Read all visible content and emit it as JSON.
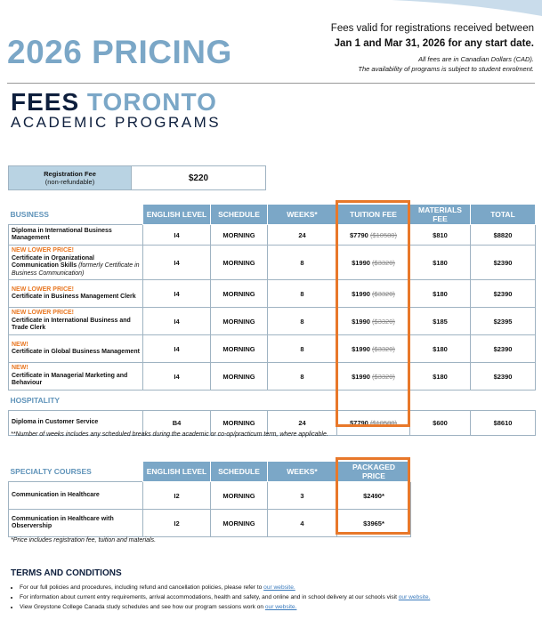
{
  "header": {
    "title": "2026 PRICING",
    "validity_line1": "Fees valid for registrations received between",
    "validity_line2": "Jan 1 and Mar 31, 2026 for any start date.",
    "note1": "All fees are in Canadian Dollars (CAD).",
    "note2": "The availability of programs is subject to student enrolment."
  },
  "subtitle": {
    "fees": "FEES",
    "city": "TORONTO",
    "programs": "ACADEMIC PROGRAMS"
  },
  "registration": {
    "label": "Registration Fee",
    "sublabel": "(non-refundable)",
    "amount": "$220"
  },
  "business_table": {
    "columns": [
      "BUSINESS",
      "ENGLISH LEVEL",
      "SCHEDULE",
      "WEEKS*",
      "TUITION FEE",
      "MATERIALS FEE",
      "TOTAL"
    ],
    "sections": [
      {
        "rows": [
          {
            "program": "Diploma in International Business Management",
            "level": "I4",
            "schedule": "MORNING",
            "weeks": "24",
            "tuition": "$7790",
            "old_tuition": "($10580)",
            "materials": "$810",
            "total": "$8820"
          },
          {
            "badge": "NEW LOWER PRICE!",
            "program": "Certificate in Organizational Communication Skills",
            "program_note": "(formerly Certificate in Business Communication)",
            "level": "I4",
            "schedule": "MORNING",
            "weeks": "8",
            "tuition": "$1990",
            "old_tuition": "($3320)",
            "materials": "$180",
            "total": "$2390"
          },
          {
            "badge": "NEW LOWER PRICE!",
            "program": "Certificate in Business Management Clerk",
            "level": "I4",
            "schedule": "MORNING",
            "weeks": "8",
            "tuition": "$1990",
            "old_tuition": "($3320)",
            "materials": "$180",
            "total": "$2390"
          },
          {
            "badge": "NEW LOWER PRICE!",
            "program": "Certificate in International Business and Trade Clerk",
            "level": "I4",
            "schedule": "MORNING",
            "weeks": "8",
            "tuition": "$1990",
            "old_tuition": "($3320)",
            "materials": "$185",
            "total": "$2395"
          },
          {
            "badge": "NEW!",
            "program": "Certificate in Global Business Management",
            "level": "I4",
            "schedule": "MORNING",
            "weeks": "8",
            "tuition": "$1990",
            "old_tuition": "($3320)",
            "materials": "$180",
            "total": "$2390"
          },
          {
            "badge": "NEW!",
            "program": "Certificate in Managerial Marketing and Behaviour",
            "level": "I4",
            "schedule": "MORNING",
            "weeks": "8",
            "tuition": "$1990",
            "old_tuition": "($3320)",
            "materials": "$180",
            "total": "$2390"
          }
        ]
      },
      {
        "title": "HOSPITALITY",
        "rows": [
          {
            "program": "Diploma in Customer Service",
            "level": "B4",
            "schedule": "MORNING",
            "weeks": "24",
            "tuition": "$7790",
            "old_tuition": "($10580)",
            "materials": "$600",
            "total": "$8610"
          }
        ]
      }
    ],
    "footnote": "**Number of weeks includes any scheduled breaks during the academic or co-op/practicum term, where applicable."
  },
  "specialty_table": {
    "columns": [
      "SPECIALTY COURSES",
      "ENGLISH LEVEL",
      "SCHEDULE",
      "WEEKS*",
      "PACKAGED PRICE"
    ],
    "rows": [
      {
        "program": "Communication in Healthcare",
        "level": "I2",
        "schedule": "MORNING",
        "weeks": "3",
        "price": "$2490*"
      },
      {
        "program": "Communication in Healthcare with Observership",
        "level": "I2",
        "schedule": "MORNING",
        "weeks": "4",
        "price": "$3965*"
      }
    ],
    "footnote": "*Price includes registration fee, tuition and materials."
  },
  "terms": {
    "title": "TERMS AND CONDITIONS",
    "items": [
      {
        "text": "For our full policies and procedures, including refund and cancellation policies, please refer to ",
        "link": "our website."
      },
      {
        "text": "For information about current entry requirements, arrival accommodations, health and safety, and online and in school delivery at our schools visit ",
        "link": "our website."
      },
      {
        "text": "View Greystone College Canada study schedules and see how our program sessions work on ",
        "link": "our website."
      }
    ]
  }
}
